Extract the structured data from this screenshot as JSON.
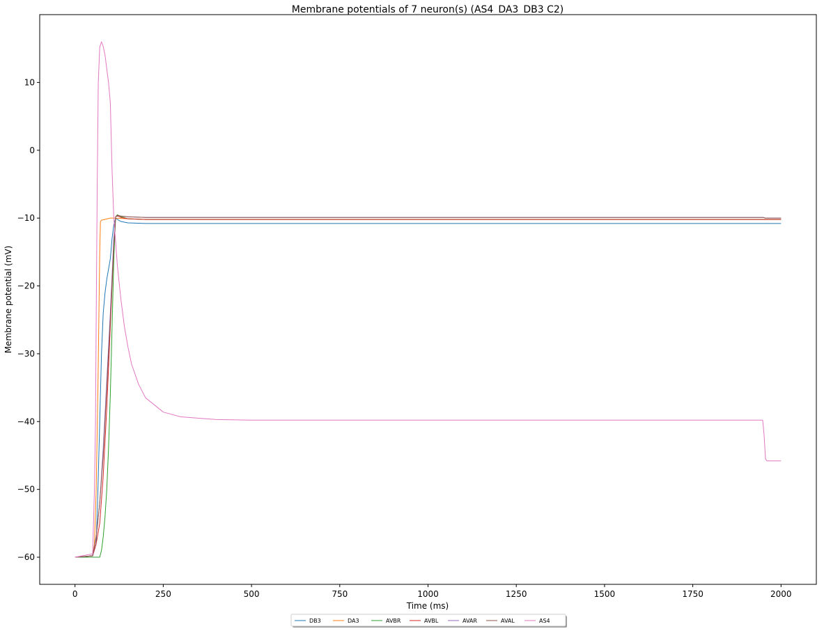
{
  "chart_data": {
    "type": "line",
    "title": "Membrane potentials of 7 neuron(s) (AS4_DA3_DB3 C2)",
    "xlabel": "Time (ms)",
    "ylabel": "Membrane potential (mV)",
    "xlim": [
      -100,
      2100
    ],
    "ylim": [
      -64,
      20
    ],
    "xticks": [
      0,
      250,
      500,
      750,
      1000,
      1250,
      1500,
      1750,
      2000
    ],
    "yticks": [
      -60,
      -50,
      -40,
      -30,
      -20,
      -10,
      0,
      10
    ],
    "grid": false,
    "legend_position": "bottom-center",
    "series": [
      {
        "name": "DB3",
        "color": "#1f77b4",
        "x": [
          0,
          50,
          60,
          65,
          70,
          75,
          80,
          85,
          90,
          100,
          105,
          110,
          115,
          120,
          130,
          150,
          200,
          300,
          500,
          1000,
          2000
        ],
        "y": [
          -60,
          -59.8,
          -58,
          -50,
          -40,
          -30,
          -24,
          -21,
          -19,
          -16,
          -13,
          -11,
          -10,
          -10.2,
          -10.5,
          -10.7,
          -10.8,
          -10.8,
          -10.8,
          -10.8,
          -10.8
        ]
      },
      {
        "name": "DA3",
        "color": "#ff7f0e",
        "x": [
          0,
          50,
          55,
          60,
          65,
          70,
          72,
          75,
          100,
          110,
          150,
          200,
          500,
          1000,
          2000
        ],
        "y": [
          -60,
          -59.8,
          -58,
          -50,
          -35,
          -15,
          -10.5,
          -10.3,
          -10,
          -10,
          -10.1,
          -10.2,
          -10.2,
          -10.2,
          -10.2
        ]
      },
      {
        "name": "AVBR",
        "color": "#2ca02c",
        "x": [
          0,
          50,
          60,
          70,
          75,
          80,
          85,
          90,
          95,
          100,
          105,
          110,
          115,
          120,
          130,
          150,
          200,
          500,
          1000,
          2000
        ],
        "y": [
          -60,
          -60,
          -60,
          -60,
          -59,
          -57,
          -54,
          -50,
          -44,
          -36,
          -26,
          -16,
          -9.8,
          -9.5,
          -9.8,
          -10.1,
          -10.2,
          -10.2,
          -10.2,
          -10.2
        ]
      },
      {
        "name": "AVBL",
        "color": "#d62728",
        "x": [
          0,
          50,
          60,
          70,
          80,
          90,
          100,
          110,
          115,
          120,
          130,
          150,
          200,
          500,
          1000,
          2000
        ],
        "y": [
          -60,
          -59.8,
          -58,
          -55,
          -48,
          -38,
          -26,
          -14,
          -9.8,
          -9.7,
          -9.9,
          -10.1,
          -10.2,
          -10.2,
          -10.2,
          -10.2
        ]
      },
      {
        "name": "AVAR",
        "color": "#9467bd",
        "x": [
          0,
          50,
          60,
          70,
          80,
          90,
          100,
          110,
          115,
          120,
          130,
          150,
          200,
          500,
          1000,
          1950,
          1955,
          2000
        ],
        "y": [
          -60,
          -59.8,
          -57,
          -52,
          -44,
          -34,
          -24,
          -13,
          -9.8,
          -9.6,
          -9.7,
          -9.8,
          -9.9,
          -9.9,
          -9.9,
          -9.9,
          -10,
          -10
        ]
      },
      {
        "name": "AVAL",
        "color": "#8c564b",
        "x": [
          0,
          50,
          60,
          70,
          80,
          90,
          100,
          110,
          115,
          120,
          130,
          150,
          200,
          500,
          1000,
          1950,
          1955,
          2000
        ],
        "y": [
          -60,
          -59.8,
          -57,
          -52,
          -45,
          -35,
          -25,
          -14,
          -9.8,
          -9.6,
          -9.7,
          -9.8,
          -9.9,
          -9.9,
          -9.9,
          -9.9,
          -10,
          -10
        ]
      },
      {
        "name": "AS4",
        "color": "#e377c2",
        "x": [
          0,
          50,
          55,
          58,
          60,
          63,
          66,
          70,
          75,
          80,
          85,
          90,
          95,
          100,
          105,
          110,
          115,
          120,
          130,
          140,
          150,
          160,
          180,
          200,
          250,
          300,
          400,
          500,
          700,
          1000,
          1500,
          1948,
          1952,
          1956,
          1960,
          2000
        ],
        "y": [
          -60,
          -59.5,
          -50,
          -40,
          -25,
          -5,
          10,
          15.2,
          16,
          15.3,
          14,
          12,
          10,
          7,
          -3,
          -10,
          -13.5,
          -17,
          -22,
          -26,
          -29,
          -31.5,
          -34.5,
          -36.5,
          -38.6,
          -39.3,
          -39.7,
          -39.8,
          -39.8,
          -39.8,
          -39.8,
          -39.8,
          -42,
          -45.5,
          -45.8,
          -45.8
        ]
      }
    ]
  }
}
